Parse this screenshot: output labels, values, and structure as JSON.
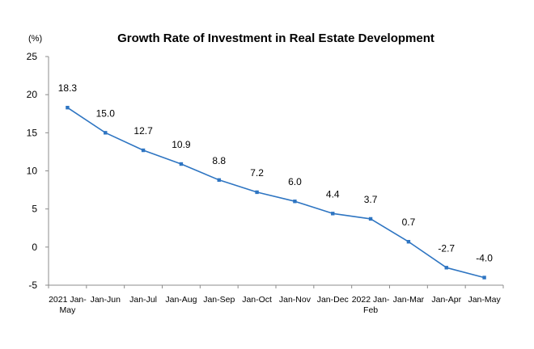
{
  "chart_data": {
    "type": "line",
    "title": "Growth Rate of Investment in Real Estate Development",
    "unit": "(%)",
    "ylim": [
      -5,
      25
    ],
    "yticks": [
      25,
      20,
      15,
      10,
      5,
      0,
      -5
    ],
    "grid": false,
    "categories": [
      [
        "2021 Jan-",
        "May"
      ],
      [
        "Jan-Jun"
      ],
      [
        "Jan-Jul"
      ],
      [
        "Jan-Aug"
      ],
      [
        "Jan-Sep"
      ],
      [
        "Jan-Oct"
      ],
      [
        "Jan-Nov"
      ],
      [
        "Jan-Dec"
      ],
      [
        "2022 Jan-",
        "Feb"
      ],
      [
        "Jan-Mar"
      ],
      [
        "Jan-Apr"
      ],
      [
        "Jan-May"
      ]
    ],
    "series": [
      {
        "values": [
          18.3,
          15.0,
          12.7,
          10.9,
          8.8,
          7.2,
          6.0,
          4.4,
          3.7,
          0.7,
          -2.7,
          -4.0
        ],
        "labels": [
          "18.3",
          "15.0",
          "12.7",
          "10.9",
          "8.8",
          "7.2",
          "6.0",
          "4.4",
          "3.7",
          "0.7",
          "-2.7",
          "-4.0"
        ],
        "color": "#2e75c2"
      }
    ]
  }
}
